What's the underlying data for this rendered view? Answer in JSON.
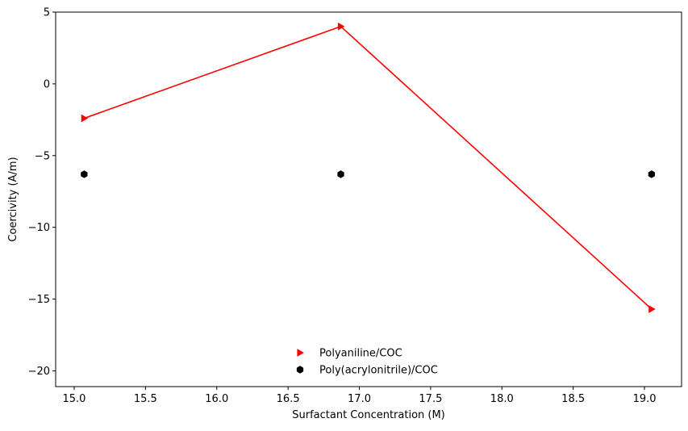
{
  "chart_data": {
    "type": "scatter",
    "title": "",
    "xlabel": "Surfactant Concentration (M)",
    "ylabel": "Coercivity (A/m)",
    "xlim": [
      14.87,
      19.26
    ],
    "ylim": [
      -21.1,
      5.0
    ],
    "xticks": [
      15.0,
      15.5,
      16.0,
      16.5,
      17.0,
      17.5,
      18.0,
      18.5,
      19.0
    ],
    "xtick_labels": [
      "15.0",
      "15.5",
      "16.0",
      "16.5",
      "17.0",
      "17.5",
      "18.0",
      "18.5",
      "19.0"
    ],
    "yticks": [
      5,
      0,
      -5,
      -10,
      -15,
      -20
    ],
    "ytick_labels": [
      "5",
      "0",
      "−5",
      "−10",
      "−15",
      "−20"
    ],
    "grid": false,
    "legend_position": "lower-center",
    "series": [
      {
        "name": "Polyaniline/COC",
        "color": "#ff0000",
        "marker": "triangle-right",
        "line": true,
        "x": [
          15.07,
          16.87,
          19.05
        ],
        "y": [
          -2.4,
          4.0,
          -15.7
        ]
      },
      {
        "name": "Poly(acrylonitrile)/COC",
        "color": "#000000",
        "marker": "hexagon",
        "line": false,
        "x": [
          15.07,
          16.87,
          19.05
        ],
        "y": [
          -6.3,
          -6.3,
          -6.3
        ]
      }
    ]
  }
}
